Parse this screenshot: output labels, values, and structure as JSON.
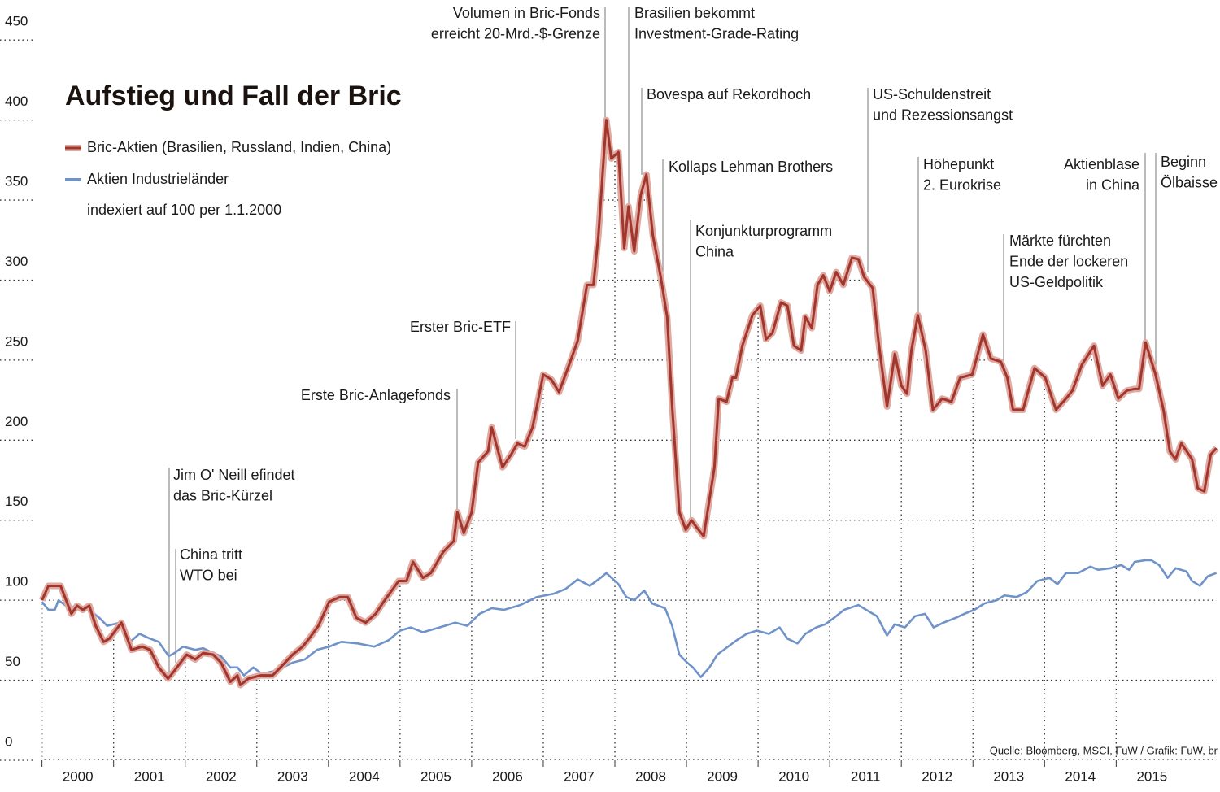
{
  "chart_data": {
    "type": "line",
    "title": "Aufstieg und Fall der Bric",
    "note": "indexiert auf 100 per 1.1.2000",
    "source": "Quelle: Bloomberg, MSCI, FuW / Grafik: FuW, br",
    "xlim": [
      1999.97,
      2016.45
    ],
    "xticks": [
      2000,
      2001,
      2002,
      2003,
      2004,
      2005,
      2006,
      2007,
      2008,
      2009,
      2010,
      2011,
      2012,
      2013,
      2014,
      2015
    ],
    "ylim": [
      0,
      475
    ],
    "yticks": [
      0,
      50,
      100,
      150,
      200,
      250,
      300,
      350,
      400,
      450
    ],
    "grid": true,
    "series": [
      {
        "name": "Bric-Aktien (Brasilien, Russland, Indien, China)",
        "color": "#a3352c",
        "halo_color": "#deaaa2",
        "x": [
          2000.0,
          2000.09,
          2000.26,
          2000.41,
          2000.49,
          2000.57,
          2000.66,
          2000.75,
          2000.86,
          2000.94,
          2001.11,
          2001.25,
          2001.4,
          2001.51,
          2001.63,
          2001.76,
          2001.85,
          2002.02,
          2002.14,
          2002.25,
          2002.39,
          2002.5,
          2002.63,
          2002.73,
          2002.77,
          2002.88,
          2003.05,
          2003.22,
          2003.33,
          2003.5,
          2003.64,
          2003.73,
          2003.86,
          2004.01,
          2004.16,
          2004.27,
          2004.39,
          2004.52,
          2004.66,
          2004.77,
          2004.98,
          2005.09,
          2005.18,
          2005.32,
          2005.43,
          2005.6,
          2005.75,
          2005.8,
          2005.89,
          2006.0,
          2006.09,
          2006.23,
          2006.28,
          2006.43,
          2006.55,
          2006.64,
          2006.74,
          2006.85,
          2007.0,
          2007.11,
          2007.22,
          2007.36,
          2007.48,
          2007.61,
          2007.7,
          2007.77,
          2007.88,
          2007.95,
          2008.05,
          2008.13,
          2008.19,
          2008.27,
          2008.36,
          2008.44,
          2008.53,
          2008.64,
          2008.73,
          2008.8,
          2008.9,
          2008.99,
          2009.07,
          2009.15,
          2009.24,
          2009.39,
          2009.45,
          2009.56,
          2009.64,
          2009.69,
          2009.78,
          2009.92,
          2010.03,
          2010.11,
          2010.2,
          2010.32,
          2010.41,
          2010.5,
          2010.6,
          2010.66,
          2010.75,
          2010.83,
          2010.91,
          2011.0,
          2011.09,
          2011.19,
          2011.31,
          2011.4,
          2011.48,
          2011.6,
          2011.68,
          2011.8,
          2011.91,
          2012.0,
          2012.08,
          2012.14,
          2012.23,
          2012.34,
          2012.44,
          2012.57,
          2012.7,
          2012.82,
          2012.99,
          2013.14,
          2013.25,
          2013.39,
          2013.48,
          2013.56,
          2013.7,
          2013.86,
          2014.01,
          2014.16,
          2014.3,
          2014.39,
          2014.52,
          2014.69,
          2014.81,
          2014.92,
          2015.03,
          2015.15,
          2015.26,
          2015.32,
          2015.41,
          2015.55,
          2015.66,
          2015.75,
          2015.83,
          2015.91,
          2016.06,
          2016.14,
          2016.23,
          2016.32,
          2016.4
        ],
        "values": [
          100,
          109,
          109,
          91.5,
          96.6,
          94,
          96.6,
          84,
          74,
          76,
          86,
          69,
          71,
          69,
          58,
          51,
          56,
          66,
          63,
          67,
          66,
          61,
          49,
          53,
          47,
          51,
          53,
          53,
          58,
          66,
          71,
          76,
          84,
          99,
          102,
          102,
          89,
          86,
          91.5,
          99,
          112,
          112,
          124,
          114,
          117,
          130,
          137,
          155,
          142,
          155,
          186,
          193,
          208,
          183,
          191,
          198,
          196,
          208,
          241,
          238,
          230,
          247,
          262,
          297,
          297,
          328,
          400,
          376,
          380,
          320,
          346,
          318,
          353,
          366,
          328,
          302,
          277,
          221,
          155,
          144,
          150,
          145,
          140,
          183,
          226,
          224,
          239,
          239,
          259,
          278,
          284,
          263,
          267,
          286,
          284,
          259,
          256,
          277,
          270,
          297,
          303,
          293,
          305,
          297,
          314,
          313,
          302,
          295,
          262,
          221,
          254,
          234,
          229,
          256,
          278,
          256,
          219,
          226,
          224,
          239,
          241,
          266,
          251,
          249,
          239,
          219,
          219,
          245,
          239,
          219,
          226,
          231,
          247,
          259,
          234,
          241,
          226,
          231,
          232,
          232,
          261,
          241,
          219,
          193,
          188,
          198,
          188,
          170,
          168,
          191,
          195
        ]
      },
      {
        "name": "Aktien Industrieländer",
        "color": "#6f93c9",
        "x": [
          2000.0,
          2000.09,
          2000.18,
          2000.23,
          2000.38,
          2000.49,
          2000.66,
          2000.8,
          2000.91,
          2001.09,
          2001.23,
          2001.36,
          2001.51,
          2001.63,
          2001.77,
          2001.85,
          2001.97,
          2002.14,
          2002.25,
          2002.39,
          2002.5,
          2002.63,
          2002.73,
          2002.82,
          2002.95,
          2003.07,
          2003.27,
          2003.5,
          2003.67,
          2003.84,
          2004.01,
          2004.18,
          2004.41,
          2004.64,
          2004.84,
          2005.0,
          2005.15,
          2005.32,
          2005.55,
          2005.77,
          2005.94,
          2006.11,
          2006.28,
          2006.45,
          2006.68,
          2006.91,
          2007.14,
          2007.31,
          2007.48,
          2007.65,
          2007.8,
          2007.88,
          2008.05,
          2008.16,
          2008.27,
          2008.41,
          2008.52,
          2008.7,
          2008.8,
          2008.9,
          2009.01,
          2009.09,
          2009.2,
          2009.32,
          2009.43,
          2009.58,
          2009.7,
          2009.84,
          2009.98,
          2010.15,
          2010.3,
          2010.41,
          2010.55,
          2010.66,
          2010.81,
          2010.94,
          2011.06,
          2011.2,
          2011.4,
          2011.51,
          2011.66,
          2011.8,
          2011.91,
          2012.05,
          2012.19,
          2012.33,
          2012.45,
          2012.59,
          2012.76,
          2012.88,
          2013.02,
          2013.16,
          2013.33,
          2013.44,
          2013.61,
          2013.75,
          2013.9,
          2014.07,
          2014.18,
          2014.3,
          2014.47,
          2014.64,
          2014.75,
          2014.92,
          2015.07,
          2015.18,
          2015.26,
          2015.41,
          2015.49,
          2015.6,
          2015.72,
          2015.83,
          2015.98,
          2016.06,
          2016.17,
          2016.28,
          2016.4
        ],
        "values": [
          99,
          94,
          94,
          100,
          95,
          97,
          94,
          89,
          84,
          86,
          74,
          79,
          76,
          74,
          65,
          67,
          71,
          69,
          70,
          67,
          65,
          58,
          58,
          53,
          58,
          54,
          56,
          61,
          63,
          69,
          71,
          74,
          73,
          71,
          75,
          81,
          83,
          80,
          83,
          86,
          84,
          91.5,
          95,
          94,
          97,
          102,
          104,
          107,
          113,
          109,
          114,
          117,
          110,
          102,
          100,
          106,
          98,
          95,
          84,
          66,
          61,
          58,
          52,
          58,
          66,
          71,
          75,
          79,
          81,
          79,
          83,
          76,
          73,
          79,
          83,
          85,
          89,
          94,
          97,
          94,
          90,
          78,
          85,
          83,
          90,
          91.5,
          83,
          86,
          89,
          91.5,
          94,
          98,
          100,
          103,
          102,
          105,
          112,
          114,
          110,
          117,
          117,
          121,
          119,
          120,
          122,
          119,
          124,
          125,
          125,
          122,
          114,
          120,
          118,
          112,
          109,
          115,
          117
        ]
      }
    ],
    "annotations": [
      {
        "lines": [
          "Jim O' Neill efindet",
          "das Bric-Kürzel"
        ]
      },
      {
        "lines": [
          "China tritt",
          "WTO bei"
        ]
      },
      {
        "lines": [
          "Erste Bric-Anlagefonds"
        ]
      },
      {
        "lines": [
          "Erster Bric-ETF"
        ]
      },
      {
        "lines": [
          "Volumen in Bric-Fonds",
          "erreicht 20-Mrd.-$-Grenze"
        ]
      },
      {
        "lines": [
          "Brasilien bekommt",
          "Investment-Grade-Rating"
        ]
      },
      {
        "lines": [
          "Bovespa auf Rekordhoch"
        ]
      },
      {
        "lines": [
          "Kollaps Lehman Brothers"
        ]
      },
      {
        "lines": [
          "Konjunkturprogramm",
          "China"
        ]
      },
      {
        "lines": [
          "US-Schuldenstreit",
          "und Rezessionsangst"
        ]
      },
      {
        "lines": [
          "Höhepunkt",
          "2. Eurokrise"
        ]
      },
      {
        "lines": [
          "Märkte fürchten",
          "Ende der lockeren",
          "US-Geldpolitik"
        ]
      },
      {
        "lines": [
          "Aktienblase",
          "in China"
        ]
      },
      {
        "lines": [
          "Beginn",
          "Ölbaisse"
        ]
      }
    ]
  }
}
